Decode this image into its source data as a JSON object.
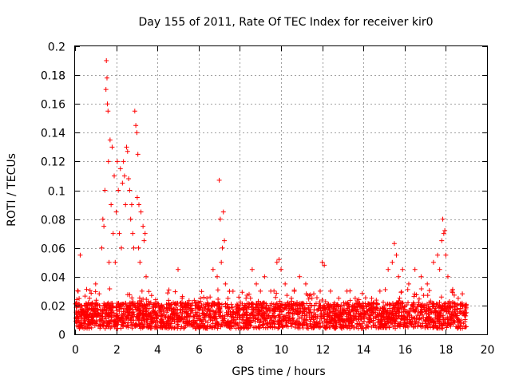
{
  "chart_data": {
    "type": "scatter",
    "title": "Day 155 of 2011, Rate Of TEC Index for receiver kir0",
    "xlabel": "GPS time / hours",
    "ylabel": "ROTI / TECUs",
    "xlim": [
      0,
      20
    ],
    "ylim": [
      0,
      0.2
    ],
    "x_ticks": [
      "0",
      "2",
      "4",
      "6",
      "8",
      "10",
      "12",
      "14",
      "16",
      "18",
      "20"
    ],
    "y_ticks": [
      "0",
      "0.02",
      "0.04",
      "0.06",
      "0.08",
      "0.1",
      "0.12",
      "0.14",
      "0.16",
      "0.18",
      "0.2"
    ],
    "grid": true,
    "marker": "+",
    "color": "#ff0000",
    "series": [
      {
        "x": [
          0.05,
          0.15,
          0.25,
          0.3,
          0.5,
          0.7,
          0.9,
          1.0,
          1.2,
          1.3,
          1.35,
          1.4,
          1.45,
          1.5,
          1.52,
          1.55,
          1.57,
          1.6,
          1.62,
          1.65,
          1.7,
          1.75,
          1.8,
          1.85,
          1.9,
          1.95,
          2.0,
          2.05,
          2.1,
          2.15,
          2.2,
          2.25,
          2.3,
          2.35,
          2.4,
          2.45,
          2.5,
          2.55,
          2.6,
          2.65,
          2.7,
          2.75,
          2.8,
          2.85,
          2.9,
          2.95,
          3.0,
          3.02,
          3.05,
          3.08,
          3.1,
          3.15,
          3.2,
          3.25,
          3.3,
          3.35,
          3.4,
          3.45,
          3.5,
          3.6,
          3.8,
          4.2,
          4.6,
          5.0,
          5.2,
          5.6,
          6.0,
          6.4,
          6.7,
          6.9,
          7.0,
          7.05,
          7.1,
          7.15,
          7.2,
          7.25,
          7.3,
          7.5,
          7.9,
          8.3,
          8.6,
          8.8,
          9.0,
          9.2,
          9.5,
          9.8,
          9.9,
          10.0,
          10.2,
          10.5,
          10.9,
          11.2,
          11.5,
          11.9,
          12.0,
          12.1,
          12.4,
          12.8,
          13.2,
          13.6,
          14.0,
          14.4,
          14.8,
          15.2,
          15.4,
          15.5,
          15.6,
          15.7,
          15.9,
          16.2,
          16.5,
          16.8,
          17.1,
          17.4,
          17.6,
          17.7,
          17.8,
          17.85,
          17.9,
          17.95,
          18.0,
          18.1,
          18.3,
          18.6,
          18.8,
          19.0
        ],
        "y": [
          0.015,
          0.03,
          0.055,
          0.02,
          0.012,
          0.025,
          0.018,
          0.035,
          0.02,
          0.06,
          0.08,
          0.075,
          0.1,
          0.17,
          0.19,
          0.178,
          0.16,
          0.155,
          0.12,
          0.05,
          0.135,
          0.09,
          0.13,
          0.07,
          0.11,
          0.05,
          0.085,
          0.12,
          0.1,
          0.07,
          0.115,
          0.06,
          0.105,
          0.12,
          0.11,
          0.09,
          0.13,
          0.127,
          0.108,
          0.1,
          0.08,
          0.09,
          0.07,
          0.06,
          0.155,
          0.145,
          0.14,
          0.095,
          0.125,
          0.06,
          0.09,
          0.05,
          0.085,
          0.03,
          0.075,
          0.065,
          0.07,
          0.04,
          0.02,
          0.018,
          0.015,
          0.02,
          0.018,
          0.045,
          0.025,
          0.02,
          0.018,
          0.025,
          0.045,
          0.04,
          0.107,
          0.08,
          0.05,
          0.06,
          0.085,
          0.065,
          0.035,
          0.03,
          0.02,
          0.025,
          0.045,
          0.035,
          0.03,
          0.04,
          0.03,
          0.05,
          0.052,
          0.045,
          0.035,
          0.025,
          0.04,
          0.035,
          0.025,
          0.03,
          0.05,
          0.048,
          0.03,
          0.025,
          0.03,
          0.025,
          0.02,
          0.025,
          0.03,
          0.045,
          0.05,
          0.063,
          0.055,
          0.04,
          0.045,
          0.035,
          0.045,
          0.04,
          0.035,
          0.05,
          0.055,
          0.045,
          0.065,
          0.08,
          0.07,
          0.072,
          0.055,
          0.04,
          0.03,
          0.025,
          0.02,
          0.015
        ]
      }
    ],
    "band": {
      "x_start": 0,
      "x_end": 19,
      "y_low": 0.004,
      "y_high": 0.022,
      "y_cap": 0.032,
      "point_count": 2600
    }
  }
}
